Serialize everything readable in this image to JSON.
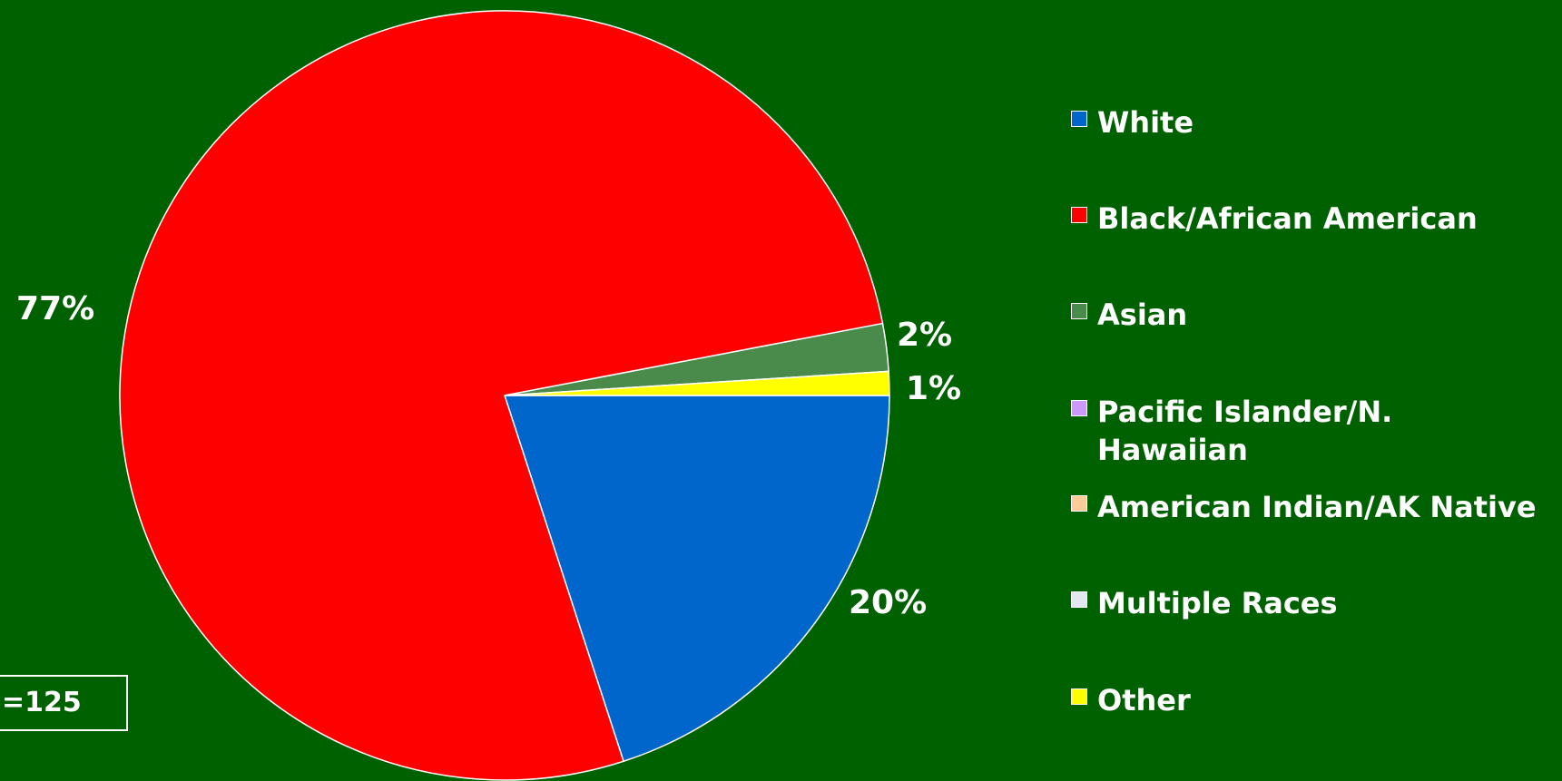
{
  "background": "#006100",
  "chart_data": {
    "type": "pie",
    "categories": [
      "White",
      "Black/African American",
      "Asian",
      "Pacific Islander/N. Hawaiian",
      "American Indian/AK Native",
      "Multiple Races",
      "Other"
    ],
    "values": [
      20,
      77,
      2,
      0,
      0,
      0,
      1
    ],
    "value_labels": [
      "20%",
      "77%",
      "2%",
      "",
      "",
      "",
      "1%"
    ],
    "colors": [
      "#0066CC",
      "#FF0000",
      "#4A8A4A",
      "#CC99FF",
      "#FFCC99",
      "#E3E8F0",
      "#FFFF00"
    ],
    "legend_position": "right",
    "start": "3 o'clock",
    "direction": "clockwise",
    "sample_label": "=125"
  }
}
